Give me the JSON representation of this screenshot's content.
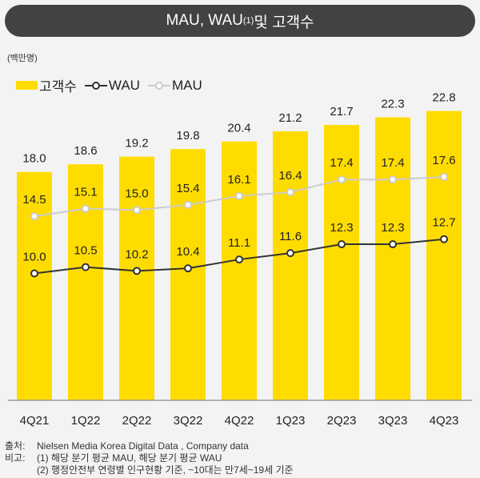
{
  "title": {
    "main": "MAU, WAU",
    "sup": "(1)",
    "rest": " 및 고객수"
  },
  "unit": "(백만명)",
  "legend": {
    "bar": "고객수",
    "wau": "WAU",
    "mau": "MAU"
  },
  "colors": {
    "bar": "#ffdc00",
    "wau": "#333333",
    "mau": "#cccccc"
  },
  "chart_data": {
    "type": "bar+line",
    "categories": [
      "4Q21",
      "1Q22",
      "2Q22",
      "3Q22",
      "4Q22",
      "1Q23",
      "2Q23",
      "3Q23",
      "4Q23"
    ],
    "series": [
      {
        "name": "고객수",
        "type": "bar",
        "values": [
          18.0,
          18.6,
          19.2,
          19.8,
          20.4,
          21.2,
          21.7,
          22.3,
          22.8
        ]
      },
      {
        "name": "MAU",
        "type": "line",
        "values": [
          14.5,
          15.1,
          15.0,
          15.4,
          16.1,
          16.4,
          17.4,
          17.4,
          17.6
        ]
      },
      {
        "name": "WAU",
        "type": "line",
        "values": [
          10.0,
          10.5,
          10.2,
          10.4,
          11.1,
          11.6,
          12.3,
          12.3,
          12.7
        ]
      }
    ],
    "ylabel": "(백만명)",
    "ylim": [
      0,
      23
    ]
  },
  "notes": {
    "source_key": "출처:",
    "source": "Nielsen Media Korea Digital Data , Company data",
    "remark_key": "비고:",
    "remark1": "(1) 해당 분기 평균 MAU, 해당 분기 평균 WAU",
    "remark2": "(2) 행정안전부 연령별 인구현황 기준, ~10대는 만7세~19세 기준"
  }
}
